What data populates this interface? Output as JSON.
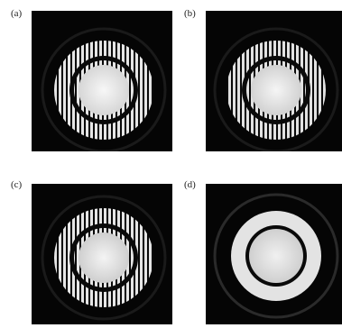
{
  "figure": {
    "panels": [
      {
        "label": "(a)",
        "pattern": "striped-rings"
      },
      {
        "label": "(b)",
        "pattern": "striped-rings"
      },
      {
        "label": "(c)",
        "pattern": "striped-rings"
      },
      {
        "label": "(d)",
        "pattern": "smooth-rings"
      }
    ],
    "colors": {
      "background": "#050505",
      "fringe": "#e8e8e8",
      "center": "#f4f4f4"
    }
  }
}
